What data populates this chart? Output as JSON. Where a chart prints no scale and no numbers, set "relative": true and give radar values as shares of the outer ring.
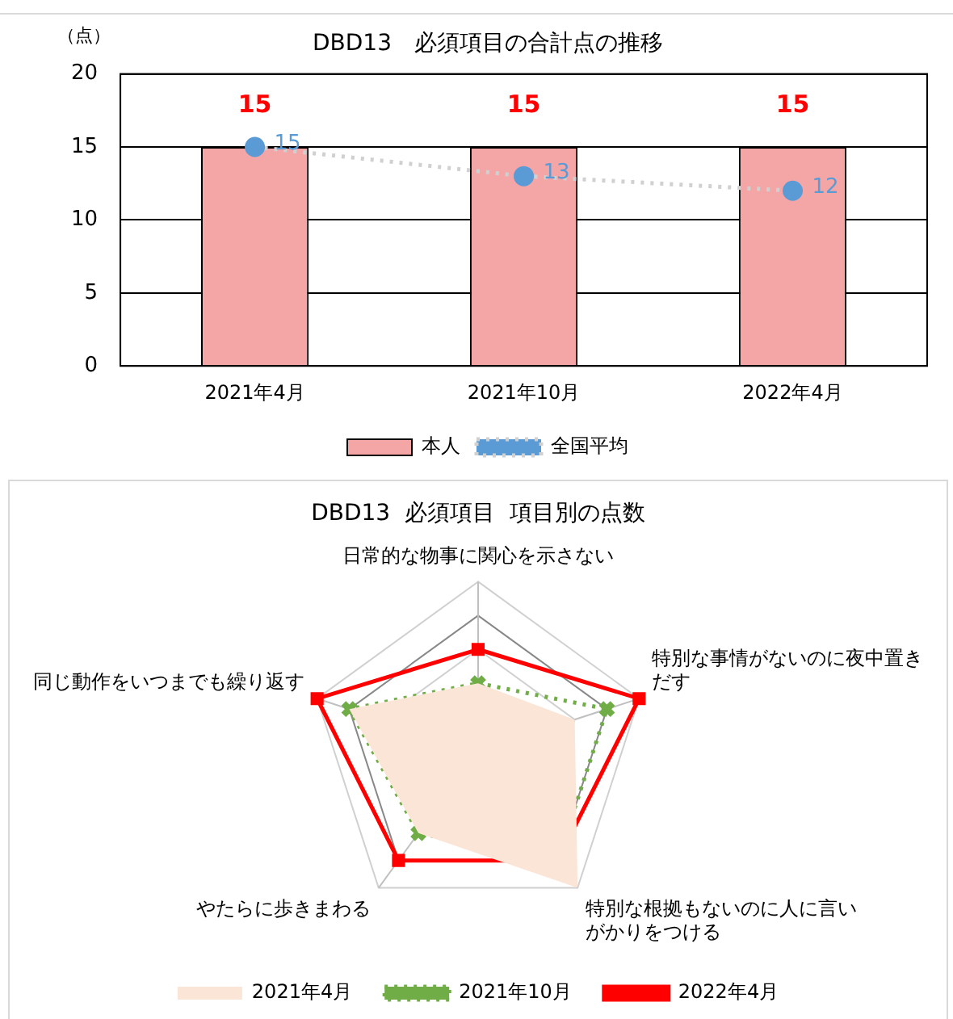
{
  "chart_data": [
    {
      "type": "bar",
      "title": "DBD13　必須項目の合計点の推移",
      "ylabel": "（点）",
      "categories": [
        "2021年4月",
        "2021年10月",
        "2022年4月"
      ],
      "series": [
        {
          "name": "本人",
          "color": "#f4a6a6",
          "values": [
            15,
            15,
            15
          ]
        },
        {
          "name": "全国平均",
          "type": "line",
          "color": "#5b9bd5",
          "line_style": "dotted",
          "marker": "circle",
          "values": [
            15,
            13,
            12
          ]
        }
      ],
      "ylim": [
        0,
        20
      ],
      "yticks": [
        0,
        5,
        10,
        15,
        20
      ],
      "grid": "y",
      "legend": "bottom",
      "data_labels": true
    },
    {
      "type": "radar",
      "title": "DBD13  必須項目  項目別の点数",
      "categories": [
        "日常的な物事に関心を示さない",
        "特別な事情がないのに夜中置きだす",
        "特別な根拠もないのに人に言いがかりをつける",
        "やたらに歩きまわる",
        "同じ動作をいつまでも繰り返す"
      ],
      "relative": true,
      "series": [
        {
          "name": "2021年4月",
          "color": "#fbe5d6",
          "marker": "none",
          "values": [
            0.4,
            0.6,
            1.0,
            0.6,
            0.8
          ]
        },
        {
          "name": "2021年10月",
          "color": "#70ad47",
          "line_style": "dotted",
          "marker": "cross",
          "values": [
            0.4,
            0.8,
            0.8,
            0.6,
            0.8
          ]
        },
        {
          "name": "2022年4月",
          "color": "#ff0000",
          "line_style": "solid",
          "marker": "square",
          "values": [
            0.6,
            1.0,
            0.8,
            0.8,
            1.0
          ]
        }
      ],
      "grid": true,
      "legend": "bottom"
    }
  ]
}
